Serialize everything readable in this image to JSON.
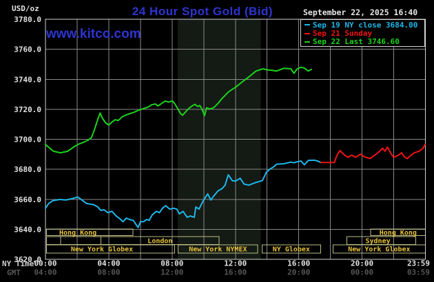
{
  "header": {
    "unit_label": "USD/oz",
    "title": "24 Hour Spot Gold (Bid)",
    "datetime": "September 22, 2025 16:40",
    "watermark": "www.kitco.com"
  },
  "legend": {
    "entries": [
      {
        "label": "Sep 19 NY close 3684.00",
        "color": "#1db8ec"
      },
      {
        "label": "Sep 21 Sunday",
        "color": "#f21414"
      },
      {
        "label": "Sep 22 Last 3746.60",
        "color": "#1bd41b"
      }
    ]
  },
  "colors": {
    "background": "#000000",
    "grid": "#8a8a8a",
    "plot_border": "#d2d2d2",
    "nymex_band": "#141a14",
    "session_border": "#bdbd85",
    "session_text": "#e6c23c",
    "axis_text": "#e2e2e2",
    "gmt_text": "#565656",
    "title_blue": "#2e34d0"
  },
  "chart_data": {
    "type": "line",
    "title": "24 Hour Spot Gold (Bid)",
    "ylabel": "USD/oz",
    "ylim": [
      3620,
      3780
    ],
    "ytick_step": 20,
    "y_ticks": [
      "3780.0",
      "3760.0",
      "3740.0",
      "3720.0",
      "3700.0",
      "3680.0",
      "3660.0",
      "3640.0",
      "3620.0"
    ],
    "grid": true,
    "nymex_band_hours": [
      8.36,
      13.59
    ],
    "x_axis": {
      "ny_label": "NY Time",
      "gmt_label": "GMT",
      "ticks": [
        {
          "h": 0,
          "ny": "00:00",
          "gmt": "04:00"
        },
        {
          "h": 4,
          "ny": "04:00",
          "gmt": "08:00"
        },
        {
          "h": 8,
          "ny": "08:00",
          "gmt": "12:00"
        },
        {
          "h": 12,
          "ny": "12:00",
          "gmt": "16:00"
        },
        {
          "h": 16,
          "ny": "16:00",
          "gmt": "20:00"
        },
        {
          "h": 20,
          "ny": "20:00",
          "gmt": "00:00"
        },
        {
          "h": 23.983,
          "ny": "23:59",
          "gmt": "03:59"
        }
      ]
    },
    "series": [
      {
        "id": "sep19",
        "name": "Sep 19 NY close 3684.00",
        "color": "#1db8ec",
        "points": [
          [
            0,
            3654
          ],
          [
            0.2,
            3657.2
          ],
          [
            0.45,
            3659
          ],
          [
            0.9,
            3659.9
          ],
          [
            1.3,
            3659.5
          ],
          [
            1.75,
            3660.6
          ],
          [
            2.05,
            3661.5
          ],
          [
            2.3,
            3659.5
          ],
          [
            2.6,
            3657.2
          ],
          [
            3.05,
            3656.4
          ],
          [
            3.3,
            3655
          ],
          [
            3.5,
            3652.6
          ],
          [
            3.7,
            3653
          ],
          [
            3.95,
            3651.1
          ],
          [
            4.2,
            3652
          ],
          [
            4.45,
            3649
          ],
          [
            4.65,
            3647.4
          ],
          [
            4.9,
            3645.1
          ],
          [
            5.1,
            3647.4
          ],
          [
            5.3,
            3646.6
          ],
          [
            5.55,
            3645.9
          ],
          [
            5.75,
            3642.8
          ],
          [
            5.85,
            3641.2
          ],
          [
            6,
            3645.1
          ],
          [
            6.2,
            3645.1
          ],
          [
            6.4,
            3646.6
          ],
          [
            6.55,
            3645.9
          ],
          [
            6.75,
            3649.7
          ],
          [
            7,
            3652
          ],
          [
            7.2,
            3651.1
          ],
          [
            7.4,
            3654.1
          ],
          [
            7.6,
            3655.7
          ],
          [
            7.85,
            3653.4
          ],
          [
            8.1,
            3654
          ],
          [
            8.3,
            3653.4
          ],
          [
            8.45,
            3650.3
          ],
          [
            8.7,
            3651.9
          ],
          [
            8.95,
            3648
          ],
          [
            9.15,
            3648.9
          ],
          [
            9.4,
            3648
          ],
          [
            9.5,
            3654.9
          ],
          [
            9.7,
            3653.4
          ],
          [
            9.95,
            3658.7
          ],
          [
            10.25,
            3663.6
          ],
          [
            10.45,
            3659.5
          ],
          [
            10.6,
            3661.8
          ],
          [
            10.9,
            3665.6
          ],
          [
            11.15,
            3667.1
          ],
          [
            11.35,
            3669.4
          ],
          [
            11.55,
            3676.3
          ],
          [
            11.8,
            3672.4
          ],
          [
            12,
            3672.1
          ],
          [
            12.3,
            3674
          ],
          [
            12.55,
            3670.1
          ],
          [
            12.85,
            3669.4
          ],
          [
            13.2,
            3670.9
          ],
          [
            13.45,
            3671.7
          ],
          [
            13.7,
            3672.4
          ],
          [
            13.95,
            3678
          ],
          [
            14.2,
            3680.3
          ],
          [
            14.4,
            3681.5
          ],
          [
            14.6,
            3683.4
          ],
          [
            15.05,
            3683.7
          ],
          [
            15.5,
            3684.8
          ],
          [
            15.7,
            3684.3
          ],
          [
            15.9,
            3685
          ],
          [
            16.15,
            3685.5
          ],
          [
            16.35,
            3683
          ],
          [
            16.6,
            3685.9
          ],
          [
            16.8,
            3686
          ],
          [
            17,
            3686
          ],
          [
            17.2,
            3685.5
          ],
          [
            17.4,
            3684.5
          ]
        ]
      },
      {
        "id": "sep21",
        "name": "Sep 21 Sunday",
        "color": "#f21414",
        "points": [
          [
            17.4,
            3684.5
          ],
          [
            18.25,
            3684.5
          ],
          [
            18.4,
            3689
          ],
          [
            18.6,
            3692.5
          ],
          [
            18.9,
            3689.4
          ],
          [
            19.1,
            3688
          ],
          [
            19.35,
            3689.4
          ],
          [
            19.6,
            3688
          ],
          [
            19.9,
            3690.1
          ],
          [
            20.1,
            3688.6
          ],
          [
            20.5,
            3687.1
          ],
          [
            20.8,
            3689.4
          ],
          [
            21,
            3691
          ],
          [
            21.3,
            3694
          ],
          [
            21.45,
            3692
          ],
          [
            21.6,
            3694.8
          ],
          [
            21.85,
            3690.1
          ],
          [
            22,
            3688
          ],
          [
            22.3,
            3689.4
          ],
          [
            22.5,
            3691
          ],
          [
            22.65,
            3688.6
          ],
          [
            22.85,
            3687.1
          ],
          [
            23.1,
            3689.4
          ],
          [
            23.3,
            3691
          ],
          [
            23.6,
            3692
          ],
          [
            23.85,
            3694
          ],
          [
            23.98,
            3696.5
          ]
        ]
      },
      {
        "id": "sep22",
        "name": "Sep 22 Last 3746.60",
        "color": "#1bd41b",
        "points": [
          [
            0,
            3696.5
          ],
          [
            0.5,
            3692
          ],
          [
            0.95,
            3691
          ],
          [
            1.4,
            3692
          ],
          [
            1.8,
            3695
          ],
          [
            2.1,
            3696.8
          ],
          [
            2.4,
            3698
          ],
          [
            2.7,
            3699.5
          ],
          [
            2.9,
            3701
          ],
          [
            3.1,
            3706.5
          ],
          [
            3.3,
            3713
          ],
          [
            3.45,
            3717.5
          ],
          [
            3.6,
            3714
          ],
          [
            3.8,
            3711
          ],
          [
            4,
            3709.5
          ],
          [
            4.2,
            3711.5
          ],
          [
            4.4,
            3713
          ],
          [
            4.6,
            3712.5
          ],
          [
            4.85,
            3715
          ],
          [
            5.05,
            3716
          ],
          [
            5.3,
            3717
          ],
          [
            5.6,
            3718
          ],
          [
            5.9,
            3719.5
          ],
          [
            6.2,
            3720.5
          ],
          [
            6.5,
            3721.5
          ],
          [
            6.7,
            3723
          ],
          [
            6.95,
            3723.5
          ],
          [
            7.1,
            3722.2
          ],
          [
            7.35,
            3724
          ],
          [
            7.57,
            3725.5
          ],
          [
            7.79,
            3724.8
          ],
          [
            8.01,
            3725.6
          ],
          [
            8.14,
            3724.1
          ],
          [
            8.36,
            3720.3
          ],
          [
            8.53,
            3717.2
          ],
          [
            8.66,
            3716
          ],
          [
            8.96,
            3719.5
          ],
          [
            9.1,
            3721
          ],
          [
            9.31,
            3722.5
          ],
          [
            9.44,
            3723.3
          ],
          [
            9.62,
            3721.8
          ],
          [
            9.75,
            3722.5
          ],
          [
            9.88,
            3720.3
          ],
          [
            10.05,
            3715.7
          ],
          [
            10.18,
            3721
          ],
          [
            10.4,
            3720.2
          ],
          [
            10.62,
            3721
          ],
          [
            10.92,
            3724.1
          ],
          [
            11.14,
            3727.1
          ],
          [
            11.36,
            3729.4
          ],
          [
            11.57,
            3731.7
          ],
          [
            11.79,
            3733.2
          ],
          [
            12.01,
            3734.7
          ],
          [
            12.4,
            3738
          ],
          [
            12.9,
            3742
          ],
          [
            13.3,
            3745.5
          ],
          [
            13.75,
            3747
          ],
          [
            14,
            3746.3
          ],
          [
            14.3,
            3746
          ],
          [
            14.6,
            3745.5
          ],
          [
            15.05,
            3747.3
          ],
          [
            15.5,
            3747
          ],
          [
            15.7,
            3744
          ],
          [
            15.9,
            3747
          ],
          [
            16.15,
            3748
          ],
          [
            16.35,
            3747.5
          ],
          [
            16.6,
            3745.5
          ],
          [
            16.8,
            3746.6
          ]
        ]
      }
    ],
    "sessions": {
      "rows": [
        [
          {
            "h0": 0.07,
            "h1": 5.52,
            "label": "Hong Kong",
            "label_h": 2.05
          },
          {
            "h0": 20.55,
            "h1": 24,
            "label": "Hong Kong"
          }
        ],
        [
          {
            "h0": 0.07,
            "h1": 0.96,
            "label": ""
          },
          {
            "h0": 0.96,
            "h1": 3.51,
            "label": ""
          },
          {
            "h0": 3.51,
            "h1": 10.97,
            "label": "London"
          },
          {
            "h0": 19.03,
            "h1": 23.4,
            "label": "Sydney",
            "label_h": 21.0
          }
        ],
        [
          {
            "h0": 0.07,
            "h1": 8.16,
            "label": "New York Globex",
            "label_h": 3.57
          },
          {
            "h0": 8.38,
            "h1": 13.41,
            "label": "New York NYMEX"
          },
          {
            "h0": 13.68,
            "h1": 17.38,
            "label": "NY Globex"
          },
          {
            "h0": 18.16,
            "h1": 24,
            "label": "New York Globex"
          }
        ]
      ]
    }
  }
}
